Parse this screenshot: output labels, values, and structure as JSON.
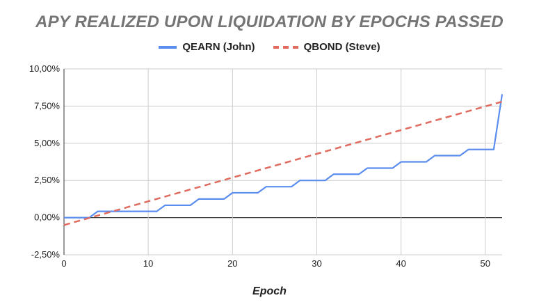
{
  "chart_data": {
    "type": "line",
    "title": "APY REALIZED UPON LIQUIDATION BY EPOCHS PASSED",
    "xlabel": "Epoch",
    "ylabel": "",
    "xlim": [
      0,
      52
    ],
    "ylim": [
      -2.5,
      10
    ],
    "x_ticks": [
      0,
      10,
      20,
      30,
      40,
      50
    ],
    "x_tick_labels": [
      "0",
      "10",
      "20",
      "30",
      "40",
      "50"
    ],
    "y_ticks": [
      -2.5,
      0,
      2.5,
      5,
      7.5,
      10
    ],
    "y_tick_labels": [
      "-2,50%",
      "0,00%",
      "2,50%",
      "5,00%",
      "7,50%",
      "10,00%"
    ],
    "grid": true,
    "legend_position": "top",
    "series": [
      {
        "name": "QEARN (John)",
        "color": "#5b8def",
        "style": "solid",
        "x": [
          0,
          1,
          2,
          3,
          4,
          5,
          6,
          7,
          8,
          9,
          10,
          11,
          12,
          13,
          14,
          15,
          16,
          17,
          18,
          19,
          20,
          21,
          22,
          23,
          24,
          25,
          26,
          27,
          28,
          29,
          30,
          31,
          32,
          33,
          34,
          35,
          36,
          37,
          38,
          39,
          40,
          41,
          42,
          43,
          44,
          45,
          46,
          47,
          48,
          49,
          50,
          51,
          52
        ],
        "values": [
          0,
          0,
          0,
          0,
          0.42,
          0.42,
          0.42,
          0.42,
          0.42,
          0.42,
          0.42,
          0.42,
          0.83,
          0.83,
          0.83,
          0.83,
          1.25,
          1.25,
          1.25,
          1.25,
          1.67,
          1.67,
          1.67,
          1.67,
          2.08,
          2.08,
          2.08,
          2.08,
          2.5,
          2.5,
          2.5,
          2.5,
          2.92,
          2.92,
          2.92,
          2.92,
          3.33,
          3.33,
          3.33,
          3.33,
          3.75,
          3.75,
          3.75,
          3.75,
          4.17,
          4.17,
          4.17,
          4.17,
          4.58,
          4.58,
          4.58,
          4.58,
          8.3
        ]
      },
      {
        "name": "QBOND (Steve)",
        "color": "#e06b5f",
        "style": "dashed",
        "x": [
          0,
          52
        ],
        "values": [
          -0.5,
          7.8
        ]
      }
    ]
  }
}
